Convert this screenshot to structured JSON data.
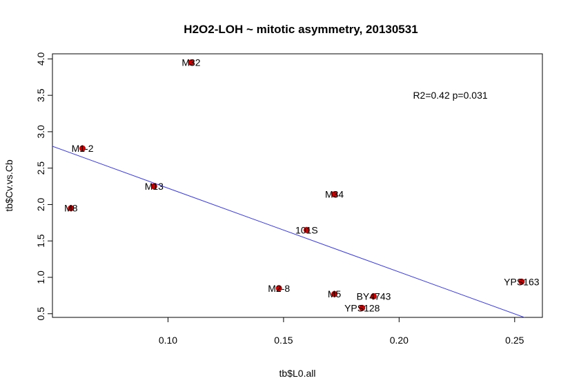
{
  "chart_data": {
    "type": "scatter",
    "title": "H2O2-LOH ~ mitotic asymmetry, 20130531",
    "xlabel": "tb$L0.all",
    "ylabel": "tb$Cv.vs.Cb",
    "xlim": [
      0.05,
      0.262
    ],
    "ylim": [
      0.45,
      4.07
    ],
    "xticks": [
      0.1,
      0.15,
      0.2,
      0.25
    ],
    "xtick_labels": [
      "0.10",
      "0.15",
      "0.20",
      "0.25"
    ],
    "yticks": [
      0.5,
      1.0,
      1.5,
      2.0,
      2.5,
      3.0,
      3.5,
      4.0
    ],
    "ytick_labels": [
      "0.5",
      "1.0",
      "1.5",
      "2.0",
      "2.5",
      "3.0",
      "3.5",
      "4.0"
    ],
    "grid": false,
    "points": [
      {
        "label": "M32",
        "x": 0.11,
        "y": 3.95
      },
      {
        "label": "M1-2",
        "x": 0.063,
        "y": 2.77
      },
      {
        "label": "M13",
        "x": 0.094,
        "y": 2.25
      },
      {
        "label": "M8",
        "x": 0.058,
        "y": 1.95
      },
      {
        "label": "M34",
        "x": 0.172,
        "y": 2.14
      },
      {
        "label": "101S",
        "x": 0.16,
        "y": 1.65
      },
      {
        "label": "M2-8",
        "x": 0.148,
        "y": 0.85
      },
      {
        "label": "M5",
        "x": 0.172,
        "y": 0.77
      },
      {
        "label": "BY4743",
        "x": 0.189,
        "y": 0.74
      },
      {
        "label": "YPS128",
        "x": 0.184,
        "y": 0.58
      },
      {
        "label": "YPS163",
        "x": 0.253,
        "y": 0.94
      }
    ],
    "fit_line": {
      "x": [
        0.05,
        0.262
      ],
      "y": [
        2.8,
        0.36
      ],
      "color": "#3333ff"
    },
    "annotation": "R2=0.42 p=0.031",
    "annotation_pos": {
      "x": 0.206,
      "y": 3.5
    },
    "point_color": "#cc0000"
  }
}
